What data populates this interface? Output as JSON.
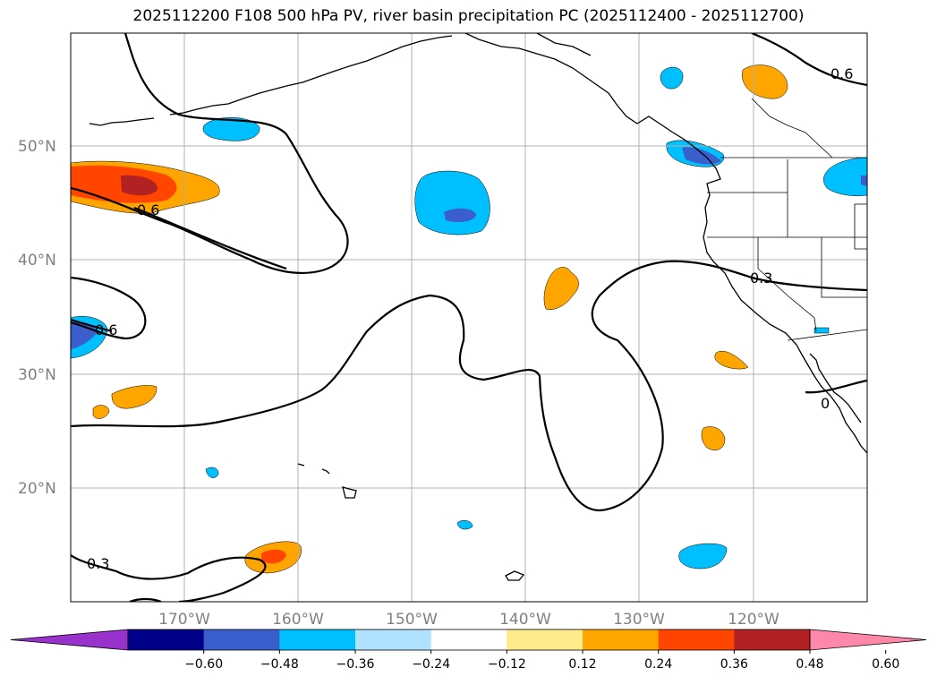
{
  "title": "2025112200 F108 500 hPa PV, river basin precipitation PC (2025112400 - 2025112700)",
  "lat_labels": [
    "50°N",
    "40°N",
    "30°N",
    "20°N"
  ],
  "lon_labels": [
    "170°W",
    "160°W",
    "150°W",
    "140°W",
    "130°W",
    "120°W"
  ],
  "contour_labels": [
    "0.6",
    "0.6",
    "0.6",
    "0.3",
    "0.3",
    "0"
  ],
  "colorbar": {
    "ticks": [
      "−0.60",
      "−0.48",
      "−0.36",
      "−0.24",
      "−0.12",
      "0.12",
      "0.24",
      "0.36",
      "0.48",
      "0.60"
    ],
    "colors": [
      "#9932cc",
      "#00008b",
      "#3a5fcd",
      "#00bfff",
      "#b0e2ff",
      "#ffffff",
      "#ffeb8a",
      "#ffa500",
      "#ff4500",
      "#b22222",
      "#ff88aa"
    ],
    "under_color": "#9932cc",
    "over_color": "#ff88aa"
  },
  "colors": {
    "frame": "#000000",
    "grid": "#b0b0b0",
    "coast": "#000000"
  }
}
